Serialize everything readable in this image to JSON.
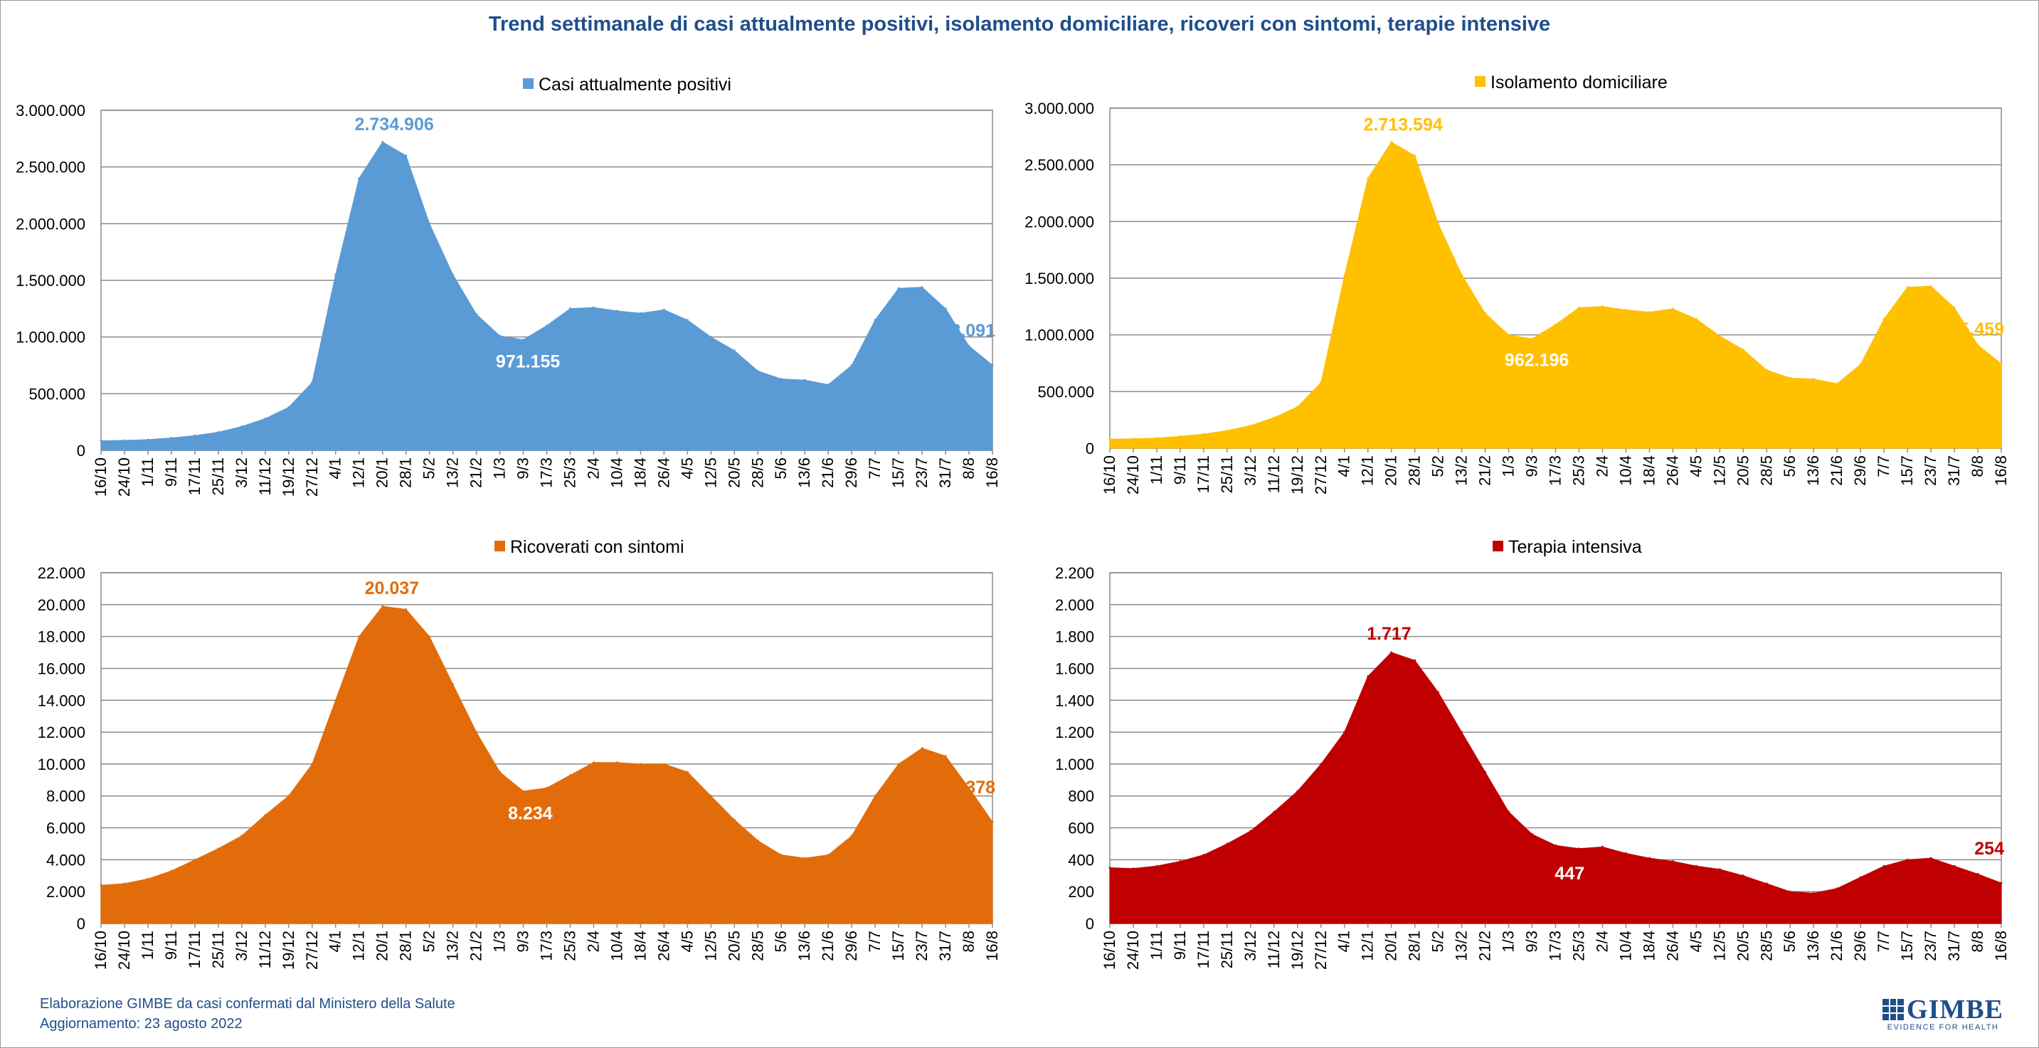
{
  "title": "Trend settimanale di casi attualmente positivi, isolamento domiciliare, ricoveri con sintomi, terapie intensive",
  "footer": {
    "line1": "Elaborazione GIMBE da casi confermati dal Ministero della Salute",
    "line2": "Aggiornamento: 23 agosto 2022"
  },
  "logo": {
    "name": "GIMBE",
    "tagline": "EVIDENCE FOR HEALTH",
    "icon": "grid-icon"
  },
  "chart_data": [
    {
      "type": "area",
      "series_name": "Casi attualmente positivi",
      "color": "#5B9BD5",
      "ylim": [
        0,
        3000000
      ],
      "yticks": [
        0,
        500000,
        1000000,
        1500000,
        2000000,
        2500000,
        3000000
      ],
      "ytick_labels": [
        "0",
        "500.000",
        "1.000.000",
        "1.500.000",
        "2.000.000",
        "2.500.000",
        "3.000.000"
      ],
      "xtick_labels": [
        "16/10",
        "24/10",
        "1/11",
        "9/11",
        "17/11",
        "25/11",
        "3/12",
        "11/12",
        "19/12",
        "27/12",
        "4/1",
        "12/1",
        "20/1",
        "28/1",
        "5/2",
        "13/2",
        "21/2",
        "1/3",
        "9/3",
        "17/3",
        "25/3",
        "2/4",
        "10/4",
        "18/4",
        "26/4",
        "4/5",
        "12/5",
        "20/5",
        "28/5",
        "5/6",
        "13/6",
        "21/6",
        "29/6",
        "7/7",
        "15/7",
        "23/7",
        "31/7",
        "8/8",
        "16/8"
      ],
      "values": [
        85000,
        88000,
        95000,
        110000,
        130000,
        160000,
        210000,
        280000,
        380000,
        600000,
        1550000,
        2400000,
        2720000,
        2600000,
        2000000,
        1550000,
        1200000,
        1010000,
        975000,
        1100000,
        1250000,
        1260000,
        1230000,
        1210000,
        1240000,
        1150000,
        1000000,
        880000,
        700000,
        630000,
        620000,
        580000,
        750000,
        1150000,
        1430000,
        1440000,
        1250000,
        920000,
        752091
      ],
      "annotations": [
        {
          "text": "2.734.906",
          "x_index": 12.5,
          "value": 2734906,
          "inside": false
        },
        {
          "text": "971.155",
          "x_index": 18.2,
          "value": 971155,
          "inside": true
        },
        {
          "text": "752.091",
          "x_index": 38.4,
          "value": 752091,
          "inside": false,
          "at_end": true
        }
      ]
    },
    {
      "type": "area",
      "series_name": "Isolamento domiciliare",
      "color": "#FFC000",
      "ylim": [
        0,
        3000000
      ],
      "yticks": [
        0,
        500000,
        1000000,
        1500000,
        2000000,
        2500000,
        3000000
      ],
      "ytick_labels": [
        "0",
        "500.000",
        "1.000.000",
        "1.500.000",
        "2.000.000",
        "2.500.000",
        "3.000.000"
      ],
      "xtick_labels": [
        "16/10",
        "24/10",
        "1/11",
        "9/11",
        "17/11",
        "25/11",
        "3/12",
        "11/12",
        "19/12",
        "27/12",
        "4/1",
        "12/1",
        "20/1",
        "28/1",
        "5/2",
        "13/2",
        "21/2",
        "1/3",
        "9/3",
        "17/3",
        "25/3",
        "2/4",
        "10/4",
        "18/4",
        "26/4",
        "4/5",
        "12/5",
        "20/5",
        "28/5",
        "5/6",
        "13/6",
        "21/6",
        "29/6",
        "7/7",
        "15/7",
        "23/7",
        "31/7",
        "8/8",
        "16/8"
      ],
      "values": [
        80000,
        83000,
        90000,
        105000,
        125000,
        155000,
        200000,
        270000,
        365000,
        580000,
        1520000,
        2380000,
        2700000,
        2580000,
        1980000,
        1530000,
        1190000,
        1000000,
        965000,
        1090000,
        1240000,
        1250000,
        1220000,
        1200000,
        1230000,
        1140000,
        990000,
        870000,
        690000,
        620000,
        610000,
        570000,
        740000,
        1140000,
        1420000,
        1430000,
        1240000,
        910000,
        745459
      ],
      "annotations": [
        {
          "text": "2.713.594",
          "x_index": 12.5,
          "value": 2713594,
          "inside": false
        },
        {
          "text": "962.196",
          "x_index": 18.2,
          "value": 962196,
          "inside": true
        },
        {
          "text": "745.459",
          "x_index": 38.4,
          "value": 745459,
          "inside": false,
          "at_end": true
        }
      ]
    },
    {
      "type": "area",
      "series_name": "Ricoverati con sintomi",
      "color": "#E36C0A",
      "ylim": [
        0,
        22000
      ],
      "yticks": [
        0,
        2000,
        4000,
        6000,
        8000,
        10000,
        12000,
        14000,
        16000,
        18000,
        20000,
        22000
      ],
      "ytick_labels": [
        "0",
        "2.000",
        "4.000",
        "6.000",
        "8.000",
        "10.000",
        "12.000",
        "14.000",
        "16.000",
        "18.000",
        "20.000",
        "22.000"
      ],
      "xtick_labels": [
        "16/10",
        "24/10",
        "1/11",
        "9/11",
        "17/11",
        "25/11",
        "3/12",
        "11/12",
        "19/12",
        "27/12",
        "4/1",
        "12/1",
        "20/1",
        "28/1",
        "5/2",
        "13/2",
        "21/2",
        "1/3",
        "9/3",
        "17/3",
        "25/3",
        "2/4",
        "10/4",
        "18/4",
        "26/4",
        "4/5",
        "12/5",
        "20/5",
        "28/5",
        "5/6",
        "13/6",
        "21/6",
        "29/6",
        "7/7",
        "15/7",
        "23/7",
        "31/7",
        "8/8",
        "16/8"
      ],
      "values": [
        2400,
        2500,
        2800,
        3300,
        4000,
        4700,
        5500,
        6800,
        8000,
        10000,
        14000,
        18000,
        19900,
        19700,
        18000,
        15000,
        12000,
        9500,
        8300,
        8500,
        9300,
        10100,
        10100,
        10000,
        10000,
        9500,
        8000,
        6500,
        5200,
        4300,
        4100,
        4300,
        5500,
        8000,
        10000,
        11000,
        10500,
        8500,
        6378
      ],
      "annotations": [
        {
          "text": "20.037",
          "x_index": 12.4,
          "value": 20037,
          "inside": false
        },
        {
          "text": "8.234",
          "x_index": 18.3,
          "value": 8234,
          "inside": true
        },
        {
          "text": "6.378",
          "x_index": 38.4,
          "value": 6378,
          "inside": false,
          "at_end": true
        }
      ]
    },
    {
      "type": "area",
      "series_name": "Terapia intensiva",
      "color": "#C00000",
      "ylim": [
        0,
        2200
      ],
      "yticks": [
        0,
        200,
        400,
        600,
        800,
        1000,
        1200,
        1400,
        1600,
        1800,
        2000,
        2200
      ],
      "ytick_labels": [
        "0",
        "200",
        "400",
        "600",
        "800",
        "1.000",
        "1.200",
        "1.400",
        "1.600",
        "1.800",
        "2.000",
        "2.200"
      ],
      "xtick_labels": [
        "16/10",
        "24/10",
        "1/11",
        "9/11",
        "17/11",
        "25/11",
        "3/12",
        "11/12",
        "19/12",
        "27/12",
        "4/1",
        "12/1",
        "20/1",
        "28/1",
        "5/2",
        "13/2",
        "21/2",
        "1/3",
        "9/3",
        "17/3",
        "25/3",
        "2/4",
        "10/4",
        "18/4",
        "26/4",
        "4/5",
        "12/5",
        "20/5",
        "28/5",
        "5/6",
        "13/6",
        "21/6",
        "29/6",
        "7/7",
        "15/7",
        "23/7",
        "31/7",
        "8/8",
        "16/8"
      ],
      "values": [
        350,
        345,
        360,
        390,
        430,
        500,
        580,
        700,
        830,
        1000,
        1200,
        1550,
        1700,
        1650,
        1450,
        1200,
        950,
        700,
        560,
        490,
        470,
        480,
        440,
        410,
        390,
        360,
        340,
        300,
        250,
        200,
        190,
        220,
        290,
        360,
        400,
        410,
        360,
        310,
        254
      ],
      "annotations": [
        {
          "text": "1.717",
          "x_index": 11.9,
          "value": 1717,
          "inside": false
        },
        {
          "text": "447",
          "x_index": 19.6,
          "value": 447,
          "inside": true
        },
        {
          "text": "254",
          "x_index": 38.4,
          "value": 254,
          "inside": false,
          "at_end": true
        }
      ]
    }
  ]
}
